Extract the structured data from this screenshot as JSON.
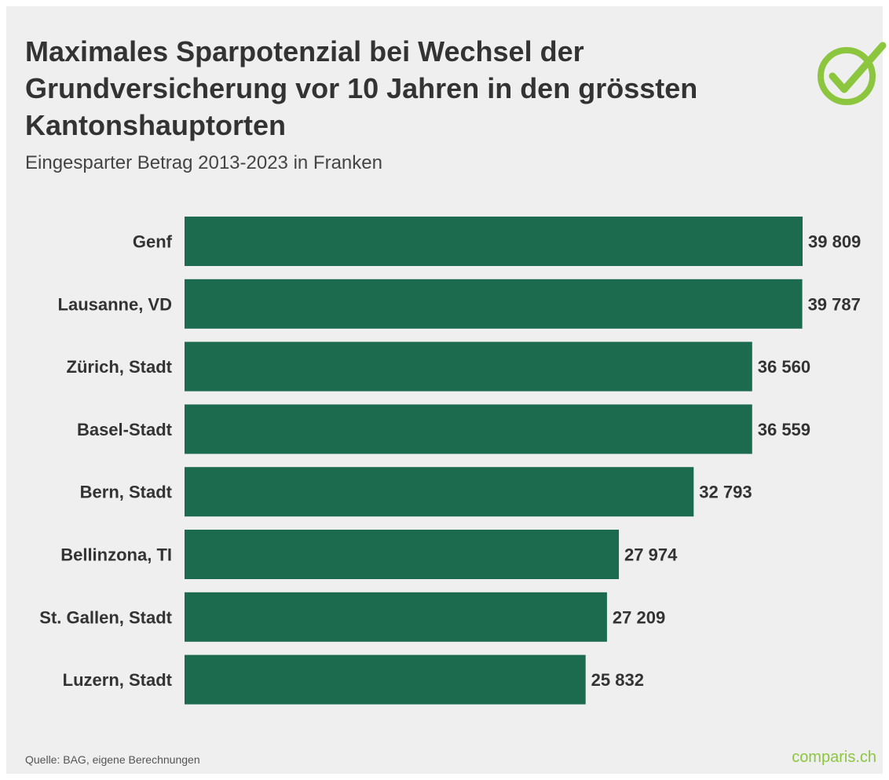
{
  "header": {
    "title": "Maximales Sparpotenzial bei Wechsel der Grundversicherung vor 10 Jahren in den grössten Kantonshauptorten",
    "subtitle": "Eingesparter Betrag 2013-2023 in Franken"
  },
  "footer": {
    "source": "Quelle: BAG, eigene Berechnungen",
    "brand": "comparis.ch"
  },
  "logo": {
    "icon": "checkmark-circle-icon",
    "color": "#8cc63f"
  },
  "colors": {
    "bar": "#1c6b4f",
    "background": "#efefef",
    "label": "#333333"
  },
  "chart_data": {
    "type": "bar",
    "orientation": "horizontal",
    "categories": [
      "Genf",
      "Lausanne, VD",
      "Zürich, Stadt",
      "Basel-Stadt",
      "Bern, Stadt",
      "Bellinzona, TI",
      "St. Gallen, Stadt",
      "Luzern, Stadt"
    ],
    "values": [
      39809,
      39787,
      36560,
      36559,
      32793,
      27974,
      27209,
      25832
    ],
    "value_labels": [
      "39 809",
      "39 787",
      "36 560",
      "36 559",
      "32 793",
      "27 974",
      "27 209",
      "25 832"
    ],
    "xlim": [
      0,
      39809
    ],
    "grid": false,
    "legend": "none"
  }
}
